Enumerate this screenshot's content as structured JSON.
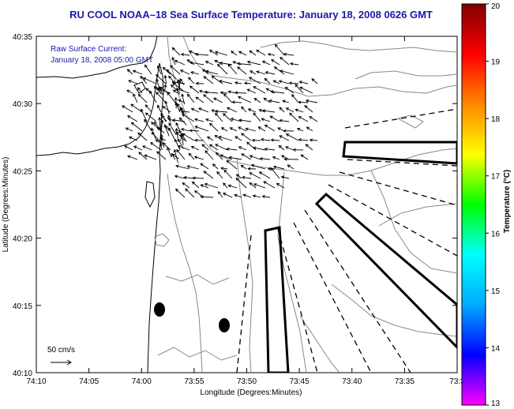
{
  "title": "RU COOL  NOAA–18  Sea Surface Temperature:  January 18, 2008 0626 GMT",
  "annotation_line1": "Raw Surface Current:",
  "annotation_line2": "January 18, 2008 05:00 GMT",
  "scale_label": "50 cm/s",
  "x_axis_label": "Longitude (Degrees:Minutes)",
  "y_axis_label": "Latitude (Degrees:Minutes)",
  "x_ticks": [
    "74:10",
    "74:05",
    "74:00",
    "73:55",
    "73:50",
    "73:45",
    "73:40",
    "73:35",
    "73:3"
  ],
  "y_ticks": [
    "40:35",
    "40:30",
    "40:25",
    "40:20",
    "40:15",
    "40:10"
  ],
  "colorbar": {
    "label": "Temperature (°C)",
    "min": 13,
    "max": 20,
    "ticks": [
      "20",
      "19",
      "18",
      "17",
      "16",
      "15",
      "14",
      "13"
    ],
    "colors": [
      "#ff00ff",
      "#0000ff",
      "#00aaff",
      "#00ffff",
      "#00ff00",
      "#ffff00",
      "#ff8800",
      "#ff0000",
      "#800000"
    ]
  },
  "colors": {
    "title": "#1a1aa8",
    "arrows": "#000000",
    "bathymetry": "#888888"
  }
}
